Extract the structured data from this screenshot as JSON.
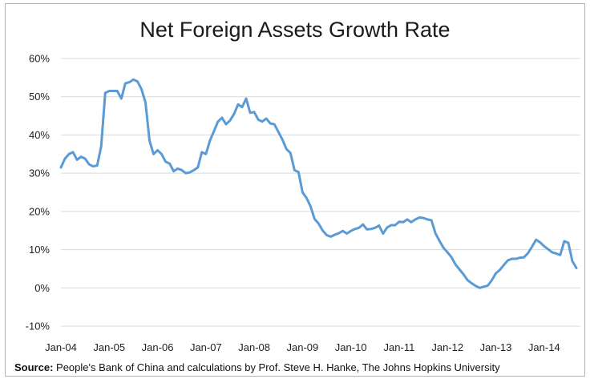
{
  "chart_data": {
    "type": "line",
    "title": "Net Foreign Assets Growth Rate",
    "xlabel": "",
    "ylabel": "",
    "ylim": [
      -10,
      60
    ],
    "y_ticks": [
      "-10%",
      "0%",
      "10%",
      "20%",
      "30%",
      "40%",
      "50%",
      "60%"
    ],
    "y_tick_values": [
      -10,
      0,
      10,
      20,
      30,
      40,
      50,
      60
    ],
    "x_ticks": [
      "Jan-04",
      "Jan-05",
      "Jan-06",
      "Jan-07",
      "Jan-08",
      "Jan-09",
      "Jan-10",
      "Jan-11",
      "Jan-12",
      "Jan-13",
      "Jan-14"
    ],
    "x_tick_months": [
      0,
      12,
      24,
      36,
      48,
      60,
      72,
      84,
      96,
      108,
      120
    ],
    "x_range_months": [
      0,
      129
    ],
    "grid": true,
    "line_color": "#5b9bd5",
    "series": [
      {
        "values": [
          31.5,
          33.8,
          35,
          35.5,
          33.5,
          34.3,
          33.8,
          32.3,
          31.8,
          32,
          37,
          51,
          51.5,
          51.5,
          51.5,
          49.5,
          53.5,
          53.8,
          54.5,
          54,
          52,
          48.5,
          38.5,
          35,
          36,
          35,
          33,
          32.5,
          30.5,
          31.2,
          30.8,
          30,
          30.2,
          30.8,
          31.5,
          35.5,
          35,
          38.5,
          41,
          43.5,
          44.5,
          42.8,
          43.8,
          45.5,
          48,
          47.3,
          49.5,
          45.8,
          46,
          44,
          43.5,
          44.3,
          43,
          42.8,
          40.8,
          38.8,
          36.3,
          35.3,
          30.8,
          30.3,
          25,
          23.5,
          21.3,
          18,
          16.8,
          15,
          13.8,
          13.4,
          13.9,
          14.3,
          14.9,
          14.2,
          14.9,
          15.4,
          15.7,
          16.6,
          15.3,
          15.4,
          15.7,
          16.3,
          14.2,
          15.8,
          16.4,
          16.4,
          17.3,
          17.2,
          17.9,
          17.2,
          17.9,
          18.4,
          18.3,
          17.9,
          17.7,
          14.3,
          12.3,
          10.5,
          9.3,
          8,
          6.1,
          4.8,
          3.5,
          2,
          1.2,
          0.5,
          0,
          0.3,
          0.6,
          2,
          3.8,
          4.7,
          6,
          7.2,
          7.6,
          7.6,
          7.9,
          8,
          9.1,
          10.8,
          12.6,
          11.9,
          10.9,
          10.1,
          9.3,
          9,
          8.6,
          12.2,
          11.8,
          7,
          5.2
        ]
      }
    ]
  },
  "source": {
    "label": "Source:",
    "text": "People's Bank of China and calculations by Prof. Steve H. Hanke, The Johns Hopkins University"
  }
}
